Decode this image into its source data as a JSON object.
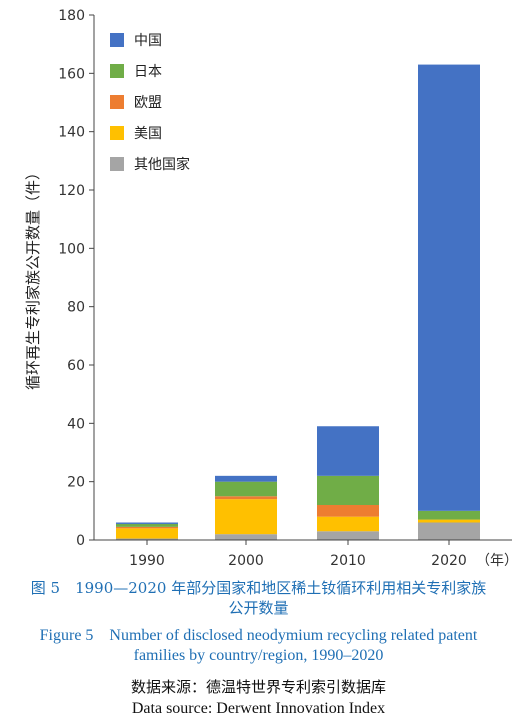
{
  "chart_data": {
    "type": "bar",
    "stacked": true,
    "categories": [
      "1990",
      "2000",
      "2010",
      "2020"
    ],
    "x_unit_label": "（年）",
    "ylabel": "循环再生专利家族公开数量（件）",
    "ylim": [
      0,
      180
    ],
    "yticks": [
      0,
      20,
      40,
      60,
      80,
      100,
      120,
      140,
      160,
      180
    ],
    "grid": false,
    "legend_position": "top-left",
    "series": [
      {
        "name": "其他国家",
        "color": "#a5a5a5",
        "values": [
          0.5,
          2,
          3,
          6
        ]
      },
      {
        "name": "美国",
        "color": "#ffc000",
        "values": [
          3.5,
          12,
          5,
          1
        ]
      },
      {
        "name": "欧盟",
        "color": "#ed7d31",
        "values": [
          0.5,
          1,
          4,
          0
        ]
      },
      {
        "name": "日本",
        "color": "#70ad47",
        "values": [
          1,
          5,
          10,
          3
        ]
      },
      {
        "name": "中国",
        "color": "#4472c4",
        "values": [
          0.5,
          2,
          17,
          153
        ]
      }
    ],
    "legend_order": [
      "中国",
      "日本",
      "欧盟",
      "美国",
      "其他国家"
    ]
  },
  "caption": {
    "zh": "图 5　1990—2020 年部分国家和地区稀土钕循环利用相关专利家族公开数量",
    "en": "Figure 5　Number of disclosed neodymium recycling related patent families by country/region, 1990–2020"
  },
  "source": {
    "zh": "数据来源：德温特世界专利索引数据库",
    "en": "Data source: Derwent Innovation Index"
  }
}
